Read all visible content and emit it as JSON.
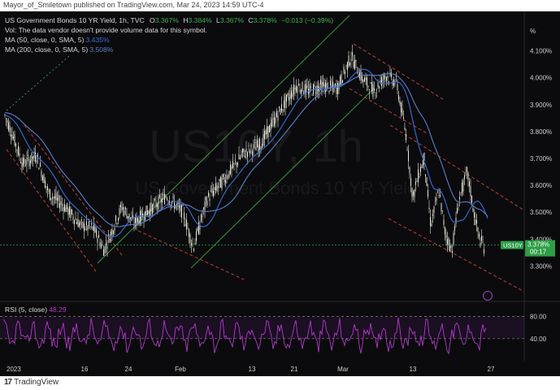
{
  "publisher": "Mayor_of_Smiletown published on TradingView.com, Mar 24, 2023 14:59 UTC-4",
  "legend": {
    "symbol_line": "US Government Bonds 10 YR Yield, 1h, TVC",
    "open_label": "O",
    "open": "3.367%",
    "high_label": "H",
    "high": "3.384%",
    "low_label": "L",
    "low": "3.367%",
    "close_label": "C",
    "close": "3.378%",
    "change": "−0.013 (−0.39%)",
    "volume_note": "Vol: The data vendor doesn't provide volume data for this symbol.",
    "ma50_label": "MA (50, close, 0, SMA, 5)",
    "ma50_value": "3.435%",
    "ma200_label": "MA (200, close, 0, SMA, 5)",
    "ma200_value": "3.508%"
  },
  "watermark": {
    "big": "US10Y, 1h",
    "small": "US Government Bonds 10 YR Yield"
  },
  "price_axis": {
    "unit": "%",
    "labels": [
      "4.100%",
      "4.000%",
      "3.900%",
      "3.800%",
      "3.700%",
      "3.600%",
      "3.500%",
      "3.400%",
      "3.300%"
    ]
  },
  "price_tag": {
    "symbol": "US10Y",
    "value": "3.378%",
    "countdown": "00:17"
  },
  "rsi": {
    "label": "RSI (5, close)",
    "value": "48.29",
    "axis_labels": [
      "80.00",
      "40.00"
    ]
  },
  "time_axis": {
    "labels": [
      "2023",
      "16",
      "24",
      "Feb",
      "13",
      "21",
      "Mar",
      "13",
      "27"
    ]
  },
  "footer": {
    "brand": "TradingView"
  },
  "colors": {
    "background": "#0b0b0d",
    "candle": "#e8e8dc",
    "ma50": "#3b6fd8",
    "ma200": "#5b7fc7",
    "channel_red": "#e04545",
    "channel_green": "#3fae4f",
    "rsi_line": "#b03cc8",
    "tag_green": "#2e9e47"
  },
  "chart_data": {
    "type": "line",
    "title": "US Government Bonds 10 YR Yield, 1h, TVC",
    "ylabel": "%",
    "ylim": [
      3.2,
      4.15
    ],
    "grid": false,
    "series": [
      {
        "name": "US10Y",
        "x": [
          "2023",
          "16",
          "24",
          "Feb",
          "13",
          "21",
          "Mar",
          "13",
          "27"
        ],
        "values": [
          3.88,
          3.42,
          3.55,
          3.38,
          3.7,
          3.95,
          4.05,
          3.6,
          3.378
        ]
      },
      {
        "name": "MA (50, close, 0, SMA, 5)",
        "values": [
          3.82,
          3.55,
          3.55,
          3.45,
          3.65,
          3.9,
          4.0,
          3.75,
          3.435
        ]
      },
      {
        "name": "MA (200, close, 0, SMA, 5)",
        "values": [
          3.78,
          3.58,
          3.55,
          3.48,
          3.6,
          3.85,
          3.98,
          3.78,
          3.508
        ]
      }
    ]
  }
}
